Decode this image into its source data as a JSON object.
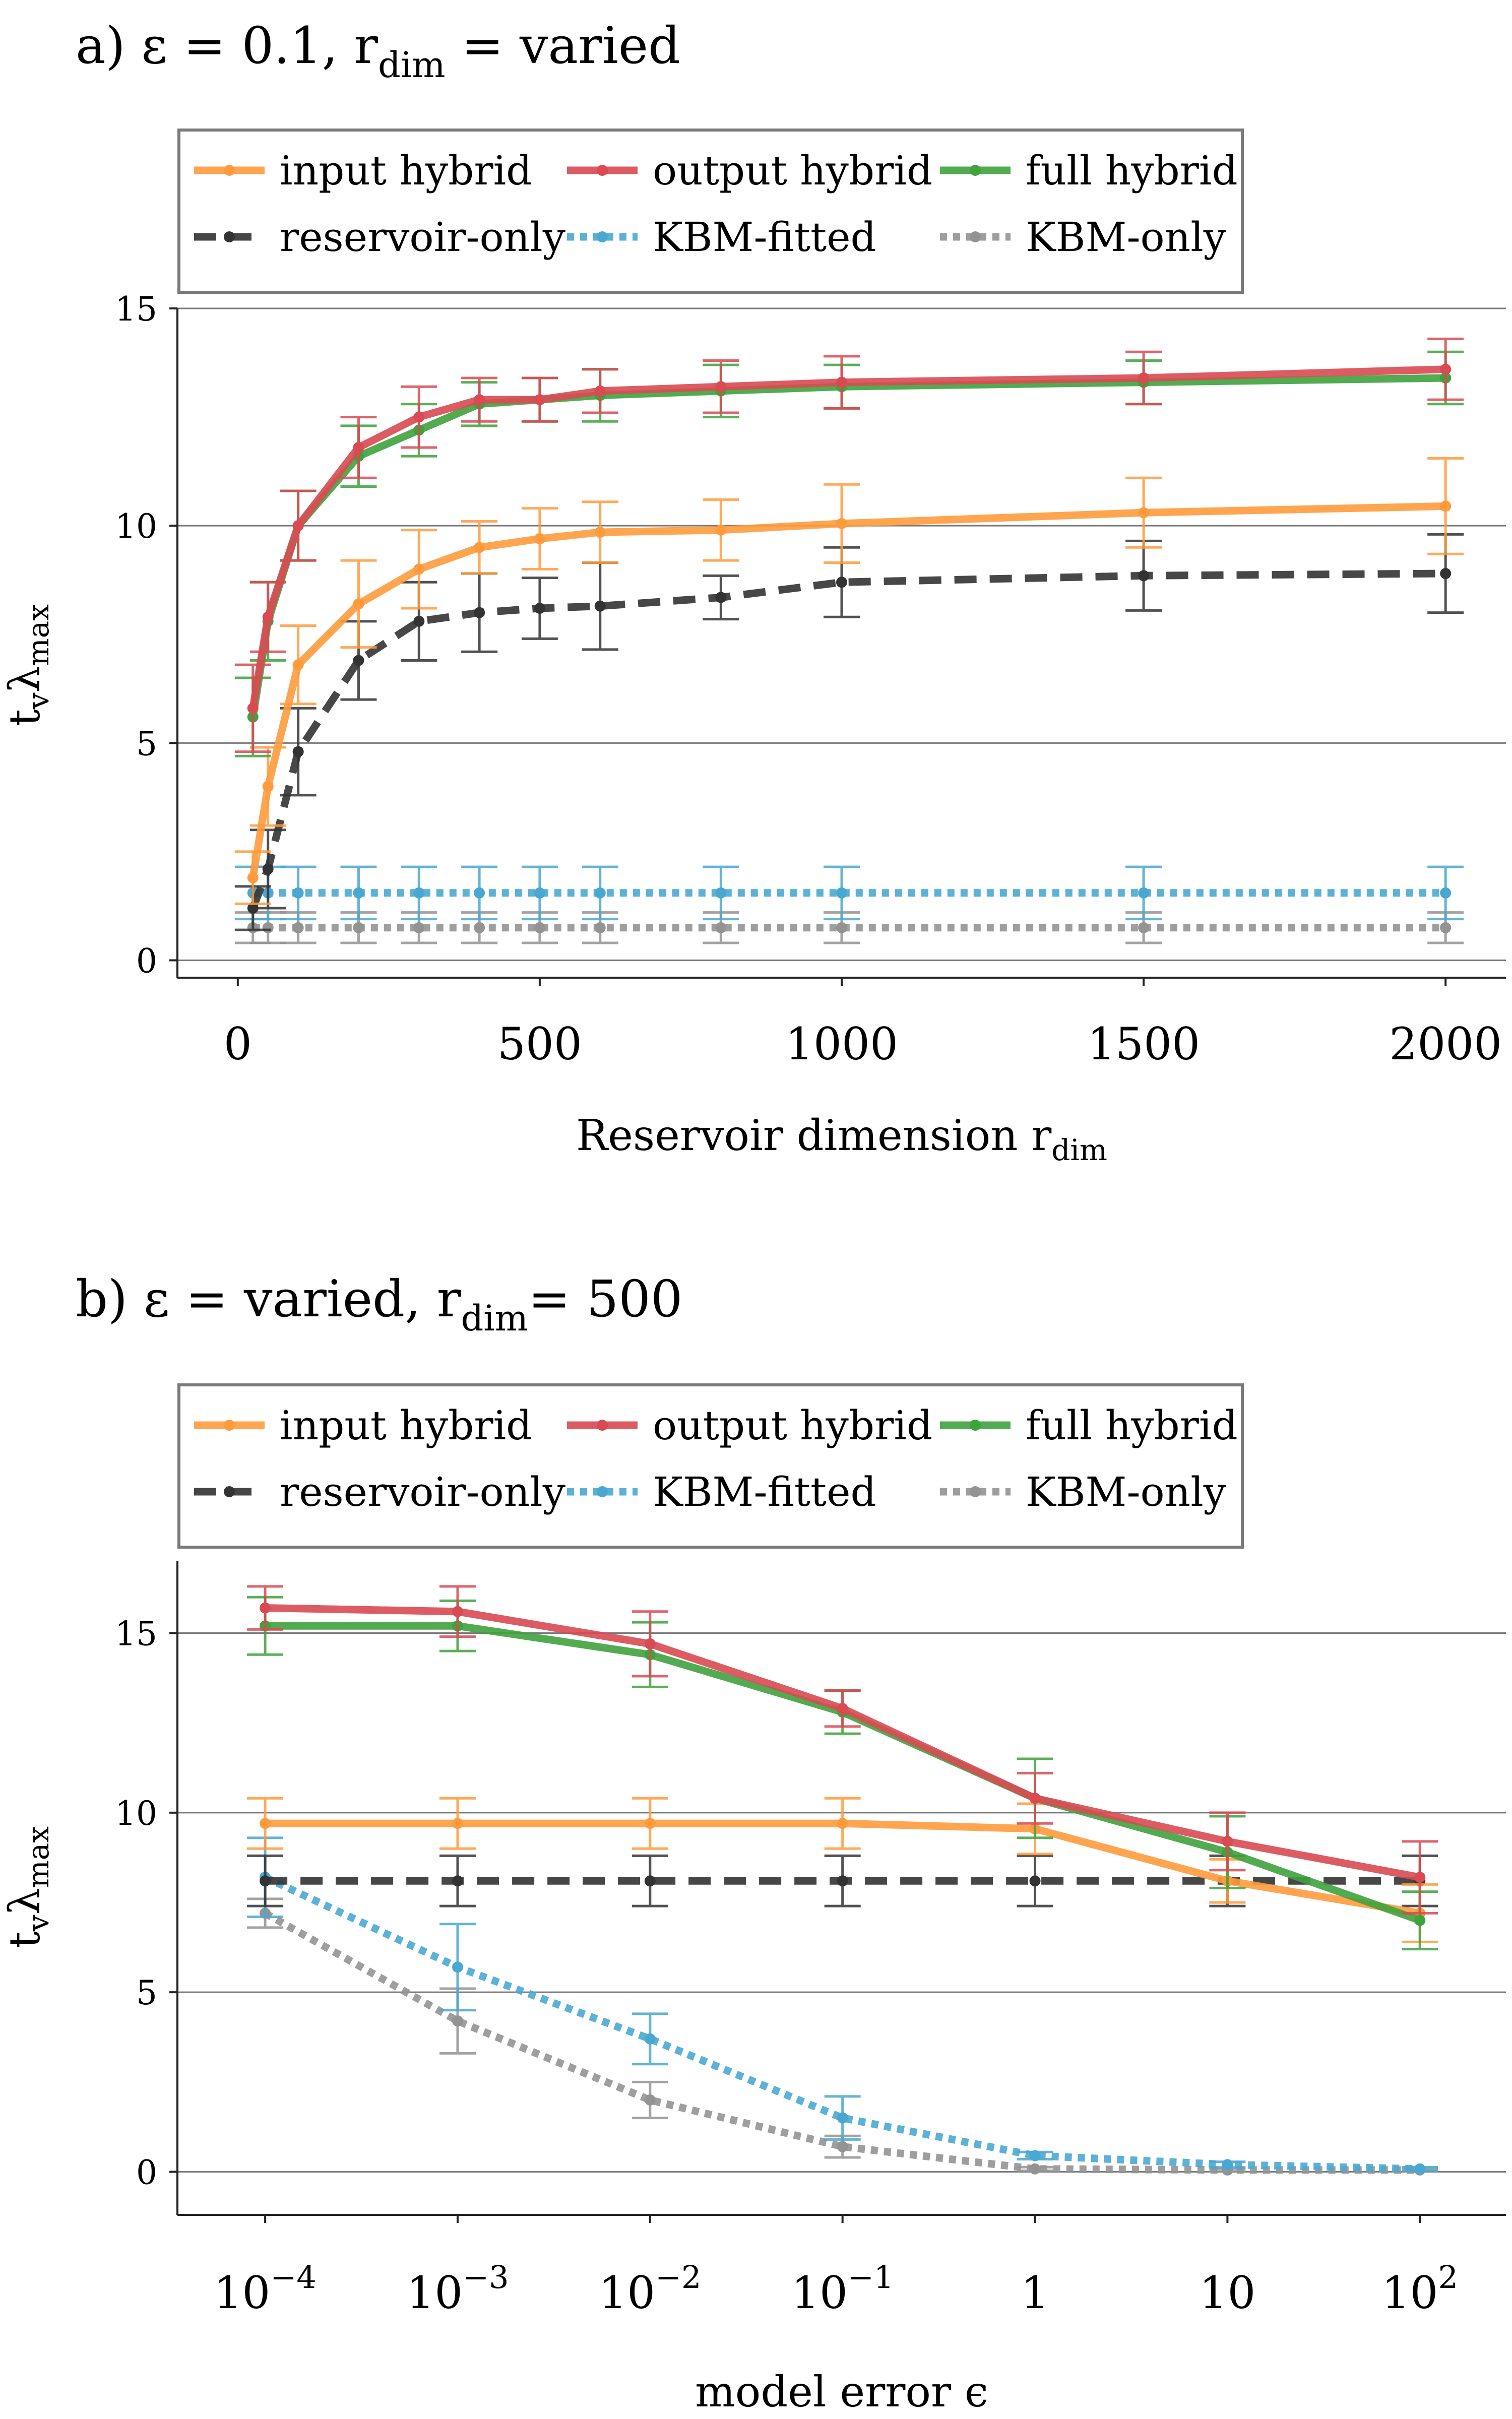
{
  "figure": {
    "panel_a_title": {
      "prefix": "a) ε = 0.1, r",
      "sub": "dim",
      "suffix": " = varied"
    },
    "panel_b_title": {
      "prefix": "b) ε = varied, r",
      "sub": "dim",
      "suffix": "= 500"
    }
  },
  "legend": [
    {
      "key": "input",
      "label": "input hybrid"
    },
    {
      "key": "output",
      "label": "output hybrid"
    },
    {
      "key": "full",
      "label": "full hybrid"
    },
    {
      "key": "reservoir",
      "label": "reservoir-only"
    },
    {
      "key": "kbmfit",
      "label": "KBM-fitted"
    },
    {
      "key": "kbmonly",
      "label": "KBM-only"
    }
  ],
  "series_styles": {
    "input": {
      "color": "#ff9b3d",
      "dash": "solid"
    },
    "output": {
      "color": "#d94a52",
      "dash": "solid"
    },
    "full": {
      "color": "#3fa23d",
      "dash": "solid"
    },
    "reservoir": {
      "color": "#333333",
      "dash": "dashed"
    },
    "kbmfit": {
      "color": "#49a8d1",
      "dash": "dotted"
    },
    "kbmonly": {
      "color": "#939393",
      "dash": "dotted"
    }
  },
  "chart_data": [
    {
      "type": "line",
      "xlabel": {
        "main": "Reservoir dimension r",
        "sub": "dim"
      },
      "ylabel": {
        "main": "t",
        "sub1": "v",
        "mid": "λ",
        "sub2": "max"
      },
      "x": [
        25,
        50,
        100,
        200,
        300,
        400,
        500,
        600,
        800,
        1000,
        1500,
        2000
      ],
      "xlim": [
        -100,
        2100
      ],
      "ylim": [
        -0.4,
        15.0
      ],
      "xticks": [
        0,
        500,
        1000,
        1500,
        2000
      ],
      "xtick_labels": [
        "0",
        "500",
        "1000",
        "1500",
        "2000"
      ],
      "yticks": [
        0,
        5,
        10,
        15
      ],
      "ytick_labels": [
        "0",
        "5",
        "10",
        "15"
      ],
      "grid": "horizontal",
      "legend_position": "top",
      "series": [
        {
          "key": "output",
          "name": "output hybrid",
          "values": [
            5.8,
            7.9,
            10.0,
            11.8,
            12.5,
            12.9,
            12.9,
            13.1,
            13.2,
            13.3,
            13.4,
            13.6
          ],
          "err": [
            1.0,
            0.8,
            0.8,
            0.7,
            0.7,
            0.5,
            0.5,
            0.5,
            0.6,
            0.6,
            0.6,
            0.7
          ]
        },
        {
          "key": "full",
          "name": "full hybrid",
          "values": [
            5.6,
            7.8,
            10.0,
            11.6,
            12.2,
            12.8,
            12.9,
            13.0,
            13.1,
            13.2,
            13.3,
            13.4
          ],
          "err": [
            0.9,
            0.9,
            0.8,
            0.7,
            0.6,
            0.5,
            0.5,
            0.6,
            0.6,
            0.5,
            0.5,
            0.6
          ]
        },
        {
          "key": "input",
          "name": "input hybrid",
          "values": [
            1.9,
            4.0,
            6.8,
            8.2,
            9.0,
            9.5,
            9.7,
            9.85,
            9.9,
            10.05,
            10.3,
            10.45
          ],
          "err": [
            0.6,
            0.9,
            0.9,
            1.0,
            0.9,
            0.6,
            0.7,
            0.7,
            0.7,
            0.9,
            0.8,
            1.1
          ]
        },
        {
          "key": "reservoir",
          "name": "reservoir-only",
          "values": [
            1.2,
            2.1,
            4.8,
            6.9,
            7.8,
            8.0,
            8.1,
            8.15,
            8.35,
            8.7,
            8.85,
            8.9
          ],
          "err": [
            0.5,
            0.9,
            1.0,
            0.9,
            0.9,
            0.9,
            0.7,
            1.0,
            0.5,
            0.8,
            0.8,
            0.9
          ]
        },
        {
          "key": "kbmfit",
          "name": "KBM-fitted",
          "values": [
            1.55,
            1.55,
            1.55,
            1.55,
            1.55,
            1.55,
            1.55,
            1.55,
            1.55,
            1.55,
            1.55,
            1.55
          ],
          "err": [
            0.6,
            0.6,
            0.6,
            0.6,
            0.6,
            0.6,
            0.6,
            0.6,
            0.6,
            0.6,
            0.6,
            0.6
          ]
        },
        {
          "key": "kbmonly",
          "name": "KBM-only",
          "values": [
            0.75,
            0.75,
            0.75,
            0.75,
            0.75,
            0.75,
            0.75,
            0.75,
            0.75,
            0.75,
            0.75,
            0.75
          ],
          "err": [
            0.35,
            0.35,
            0.35,
            0.35,
            0.35,
            0.35,
            0.35,
            0.35,
            0.35,
            0.35,
            0.35,
            0.35
          ]
        }
      ]
    },
    {
      "type": "line",
      "xscale": "log",
      "xlabel": {
        "main": "model error ϵ",
        "sub": ""
      },
      "ylabel": {
        "main": "t",
        "sub1": "v",
        "mid": "λ",
        "sub2": "max"
      },
      "x": [
        0.0001,
        0.001,
        0.01,
        0.1,
        1,
        10,
        100
      ],
      "xlim": [
        3.5e-05,
        280
      ],
      "ylim": [
        -1.2,
        17.0
      ],
      "xticks": [
        0.0001,
        0.001,
        0.01,
        0.1,
        1,
        10,
        100
      ],
      "xtick_labels": [
        {
          "base": "10",
          "exp": "−4"
        },
        {
          "base": "10",
          "exp": "−3"
        },
        {
          "base": "10",
          "exp": "−2"
        },
        {
          "base": "10",
          "exp": "−1"
        },
        {
          "base": "1",
          "exp": ""
        },
        {
          "base": "10",
          "exp": ""
        },
        {
          "base": "10",
          "exp": "2"
        }
      ],
      "yticks": [
        0,
        5,
        10,
        15
      ],
      "ytick_labels": [
        "0",
        "5",
        "10",
        "15"
      ],
      "grid": "horizontal",
      "legend_position": "top",
      "series": [
        {
          "key": "output",
          "name": "output hybrid",
          "values": [
            15.7,
            15.6,
            14.7,
            12.9,
            10.4,
            9.2,
            8.2
          ],
          "err": [
            0.6,
            0.7,
            0.9,
            0.5,
            0.7,
            0.8,
            1.0
          ]
        },
        {
          "key": "full",
          "name": "full hybrid",
          "values": [
            15.2,
            15.2,
            14.4,
            12.8,
            10.4,
            8.9,
            7.0
          ],
          "err": [
            0.8,
            0.7,
            0.9,
            0.6,
            1.1,
            1.0,
            0.8
          ]
        },
        {
          "key": "input",
          "name": "input hybrid",
          "values": [
            9.7,
            9.7,
            9.7,
            9.7,
            9.55,
            8.1,
            7.2
          ],
          "err": [
            0.7,
            0.7,
            0.7,
            0.7,
            0.7,
            0.6,
            0.8
          ]
        },
        {
          "key": "reservoir",
          "name": "reservoir-only",
          "values": [
            8.1,
            8.1,
            8.1,
            8.1,
            8.1,
            8.1,
            8.1
          ],
          "err": [
            0.7,
            0.7,
            0.7,
            0.7,
            0.7,
            0.7,
            0.7
          ]
        },
        {
          "key": "kbmfit",
          "name": "KBM-fitted",
          "values": [
            8.2,
            5.7,
            3.7,
            1.5,
            0.45,
            0.2,
            0.08
          ],
          "err": [
            1.1,
            1.2,
            0.7,
            0.6,
            0.1,
            0.08,
            0.05
          ]
        },
        {
          "key": "kbmonly",
          "name": "KBM-only",
          "values": [
            7.2,
            4.2,
            2.0,
            0.7,
            0.08,
            0.05,
            0.05
          ],
          "err": [
            0.4,
            0.9,
            0.5,
            0.3,
            0.05,
            0.04,
            0.04
          ]
        }
      ]
    }
  ]
}
